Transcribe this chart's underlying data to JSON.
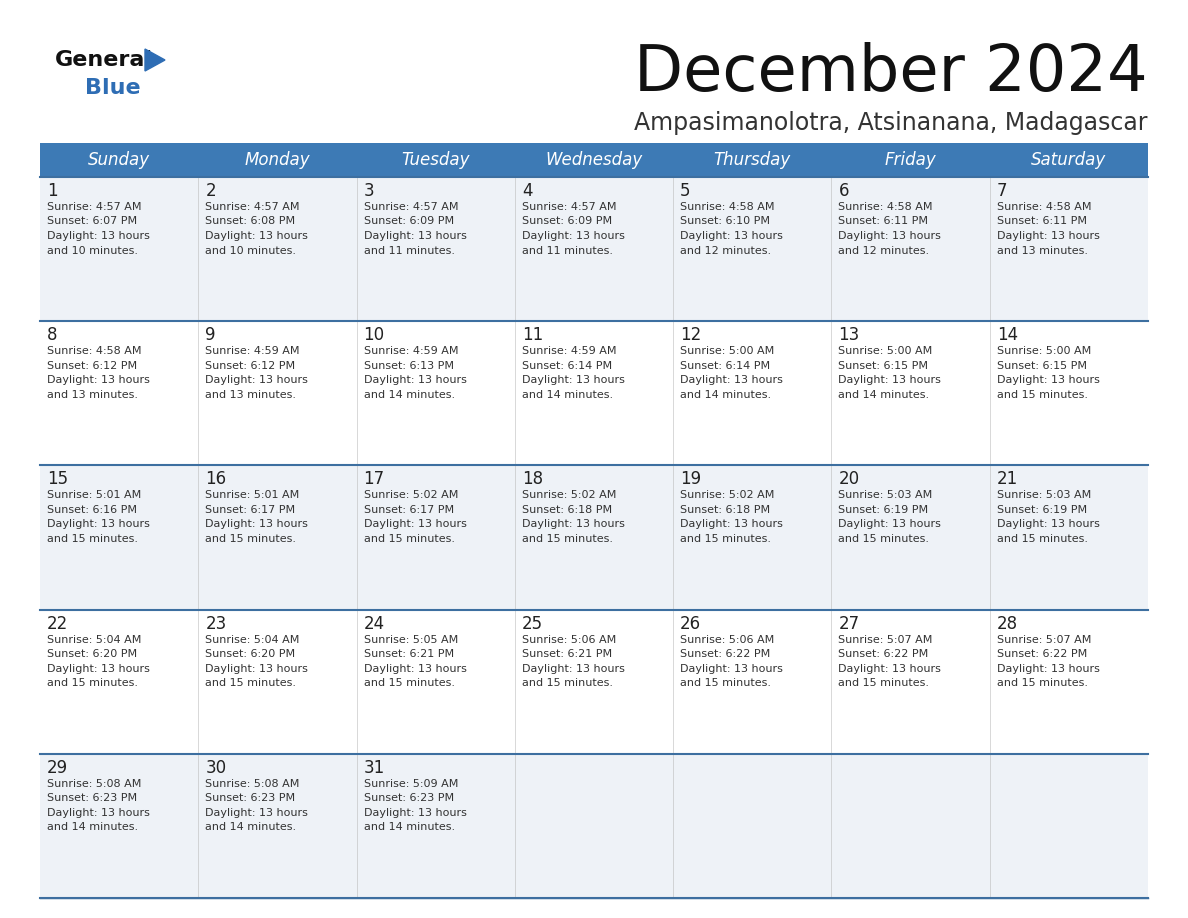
{
  "title": "December 2024",
  "subtitle": "Ampasimanolotra, Atsinanana, Madagascar",
  "days_of_week": [
    "Sunday",
    "Monday",
    "Tuesday",
    "Wednesday",
    "Thursday",
    "Friday",
    "Saturday"
  ],
  "header_bg": "#3d7ab5",
  "header_text": "#ffffff",
  "row_bg_odd": "#eef2f7",
  "row_bg_even": "#ffffff",
  "border_color": "#3d6fa0",
  "day_num_color": "#222222",
  "cell_text_color": "#333333",
  "logo_general_color": "#111111",
  "logo_blue_color": "#2e6db4",
  "logo_triangle_color": "#2e6db4",
  "calendar_data": [
    [
      {
        "day": 1,
        "sunrise": "4:57 AM",
        "sunset": "6:07 PM",
        "daylight": "13 hours",
        "daylight2": "and 10 minutes."
      },
      {
        "day": 2,
        "sunrise": "4:57 AM",
        "sunset": "6:08 PM",
        "daylight": "13 hours",
        "daylight2": "and 10 minutes."
      },
      {
        "day": 3,
        "sunrise": "4:57 AM",
        "sunset": "6:09 PM",
        "daylight": "13 hours",
        "daylight2": "and 11 minutes."
      },
      {
        "day": 4,
        "sunrise": "4:57 AM",
        "sunset": "6:09 PM",
        "daylight": "13 hours",
        "daylight2": "and 11 minutes."
      },
      {
        "day": 5,
        "sunrise": "4:58 AM",
        "sunset": "6:10 PM",
        "daylight": "13 hours",
        "daylight2": "and 12 minutes."
      },
      {
        "day": 6,
        "sunrise": "4:58 AM",
        "sunset": "6:11 PM",
        "daylight": "13 hours",
        "daylight2": "and 12 minutes."
      },
      {
        "day": 7,
        "sunrise": "4:58 AM",
        "sunset": "6:11 PM",
        "daylight": "13 hours",
        "daylight2": "and 13 minutes."
      }
    ],
    [
      {
        "day": 8,
        "sunrise": "4:58 AM",
        "sunset": "6:12 PM",
        "daylight": "13 hours",
        "daylight2": "and 13 minutes."
      },
      {
        "day": 9,
        "sunrise": "4:59 AM",
        "sunset": "6:12 PM",
        "daylight": "13 hours",
        "daylight2": "and 13 minutes."
      },
      {
        "day": 10,
        "sunrise": "4:59 AM",
        "sunset": "6:13 PM",
        "daylight": "13 hours",
        "daylight2": "and 14 minutes."
      },
      {
        "day": 11,
        "sunrise": "4:59 AM",
        "sunset": "6:14 PM",
        "daylight": "13 hours",
        "daylight2": "and 14 minutes."
      },
      {
        "day": 12,
        "sunrise": "5:00 AM",
        "sunset": "6:14 PM",
        "daylight": "13 hours",
        "daylight2": "and 14 minutes."
      },
      {
        "day": 13,
        "sunrise": "5:00 AM",
        "sunset": "6:15 PM",
        "daylight": "13 hours",
        "daylight2": "and 14 minutes."
      },
      {
        "day": 14,
        "sunrise": "5:00 AM",
        "sunset": "6:15 PM",
        "daylight": "13 hours",
        "daylight2": "and 15 minutes."
      }
    ],
    [
      {
        "day": 15,
        "sunrise": "5:01 AM",
        "sunset": "6:16 PM",
        "daylight": "13 hours",
        "daylight2": "and 15 minutes."
      },
      {
        "day": 16,
        "sunrise": "5:01 AM",
        "sunset": "6:17 PM",
        "daylight": "13 hours",
        "daylight2": "and 15 minutes."
      },
      {
        "day": 17,
        "sunrise": "5:02 AM",
        "sunset": "6:17 PM",
        "daylight": "13 hours",
        "daylight2": "and 15 minutes."
      },
      {
        "day": 18,
        "sunrise": "5:02 AM",
        "sunset": "6:18 PM",
        "daylight": "13 hours",
        "daylight2": "and 15 minutes."
      },
      {
        "day": 19,
        "sunrise": "5:02 AM",
        "sunset": "6:18 PM",
        "daylight": "13 hours",
        "daylight2": "and 15 minutes."
      },
      {
        "day": 20,
        "sunrise": "5:03 AM",
        "sunset": "6:19 PM",
        "daylight": "13 hours",
        "daylight2": "and 15 minutes."
      },
      {
        "day": 21,
        "sunrise": "5:03 AM",
        "sunset": "6:19 PM",
        "daylight": "13 hours",
        "daylight2": "and 15 minutes."
      }
    ],
    [
      {
        "day": 22,
        "sunrise": "5:04 AM",
        "sunset": "6:20 PM",
        "daylight": "13 hours",
        "daylight2": "and 15 minutes."
      },
      {
        "day": 23,
        "sunrise": "5:04 AM",
        "sunset": "6:20 PM",
        "daylight": "13 hours",
        "daylight2": "and 15 minutes."
      },
      {
        "day": 24,
        "sunrise": "5:05 AM",
        "sunset": "6:21 PM",
        "daylight": "13 hours",
        "daylight2": "and 15 minutes."
      },
      {
        "day": 25,
        "sunrise": "5:06 AM",
        "sunset": "6:21 PM",
        "daylight": "13 hours",
        "daylight2": "and 15 minutes."
      },
      {
        "day": 26,
        "sunrise": "5:06 AM",
        "sunset": "6:22 PM",
        "daylight": "13 hours",
        "daylight2": "and 15 minutes."
      },
      {
        "day": 27,
        "sunrise": "5:07 AM",
        "sunset": "6:22 PM",
        "daylight": "13 hours",
        "daylight2": "and 15 minutes."
      },
      {
        "day": 28,
        "sunrise": "5:07 AM",
        "sunset": "6:22 PM",
        "daylight": "13 hours",
        "daylight2": "and 15 minutes."
      }
    ],
    [
      {
        "day": 29,
        "sunrise": "5:08 AM",
        "sunset": "6:23 PM",
        "daylight": "13 hours",
        "daylight2": "and 14 minutes."
      },
      {
        "day": 30,
        "sunrise": "5:08 AM",
        "sunset": "6:23 PM",
        "daylight": "13 hours",
        "daylight2": "and 14 minutes."
      },
      {
        "day": 31,
        "sunrise": "5:09 AM",
        "sunset": "6:23 PM",
        "daylight": "13 hours",
        "daylight2": "and 14 minutes."
      },
      null,
      null,
      null,
      null
    ]
  ]
}
